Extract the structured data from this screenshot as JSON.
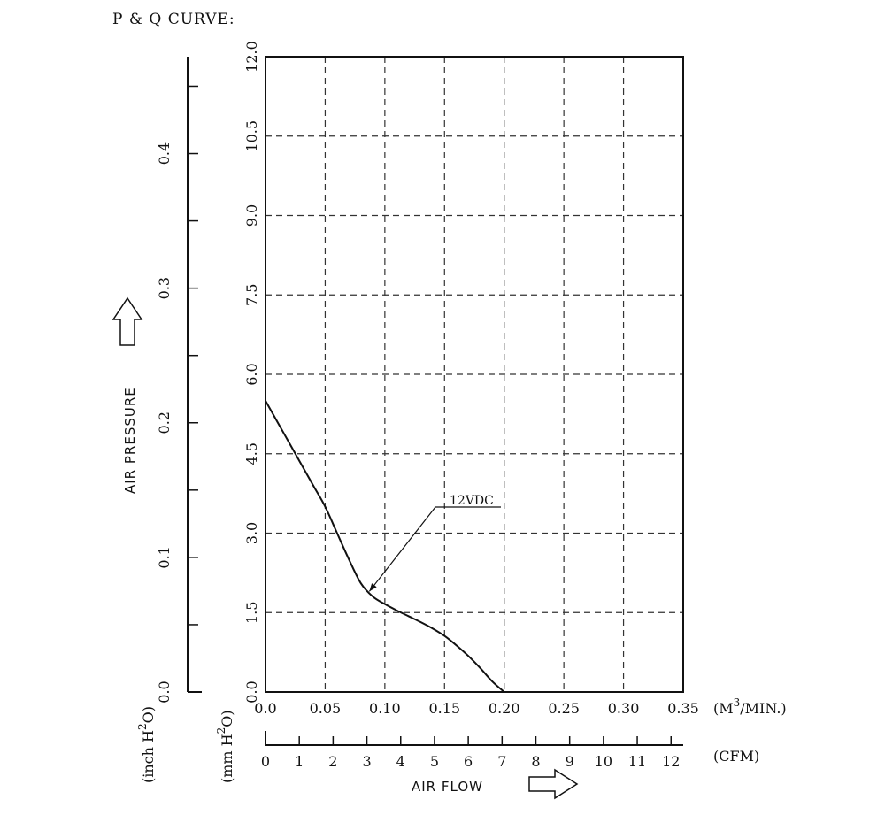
{
  "chart_data": {
    "type": "line",
    "title": "P & Q CURVE:",
    "ylabel": "AIR PRESSURE",
    "xlabel": "AIR FLOW",
    "x_units": "(M³/MIN.)",
    "x_units_base": "(M",
    "x_units_sup": "3",
    "x_units_rest": "/MIN.)",
    "cfm_units": "(CFM)",
    "y_units_mm": "(mm H²O)",
    "y_units_mm_base": "(mm H",
    "y_units_mm_sup": "2",
    "y_units_mm_rest": "O)",
    "y_units_inch": "(inch H²O)",
    "y_units_inch_base": "(inch H",
    "y_units_inch_sup": "2",
    "y_units_inch_rest": "O)",
    "xlim": [
      0,
      0.35
    ],
    "ylim": [
      0,
      12.0
    ],
    "x_ticks": [
      "0.0",
      "0.05",
      "0.10",
      "0.15",
      "0.20",
      "0.25",
      "0.30",
      "0.35"
    ],
    "y_ticks": [
      "0.0",
      "1.5",
      "3.0",
      "4.5",
      "6.0",
      "7.5",
      "9.0",
      "10.5",
      "12.0"
    ],
    "inch_ticks": [
      "0.0",
      "0.1",
      "0.2",
      "0.3",
      "0.4"
    ],
    "inch_max": 0.472,
    "cfm_ticks": [
      "0",
      "1",
      "2",
      "3",
      "4",
      "5",
      "6",
      "7",
      "8",
      "9",
      "10",
      "11",
      "12"
    ],
    "cfm_max": 12.36,
    "grid": true,
    "series": [
      {
        "name": "12VDC",
        "x": [
          0.0,
          0.01,
          0.02,
          0.03,
          0.04,
          0.05,
          0.06,
          0.07,
          0.08,
          0.09,
          0.1,
          0.11,
          0.12,
          0.13,
          0.14,
          0.15,
          0.16,
          0.17,
          0.18,
          0.19,
          0.2
        ],
        "y": [
          5.5,
          5.1,
          4.7,
          4.3,
          3.9,
          3.5,
          3.0,
          2.5,
          2.05,
          1.8,
          1.66,
          1.54,
          1.43,
          1.32,
          1.2,
          1.06,
          0.88,
          0.68,
          0.45,
          0.2,
          0.0
        ]
      }
    ],
    "annotation": {
      "text": "12VDC",
      "points_to": [
        0.087,
        1.9
      ]
    }
  }
}
